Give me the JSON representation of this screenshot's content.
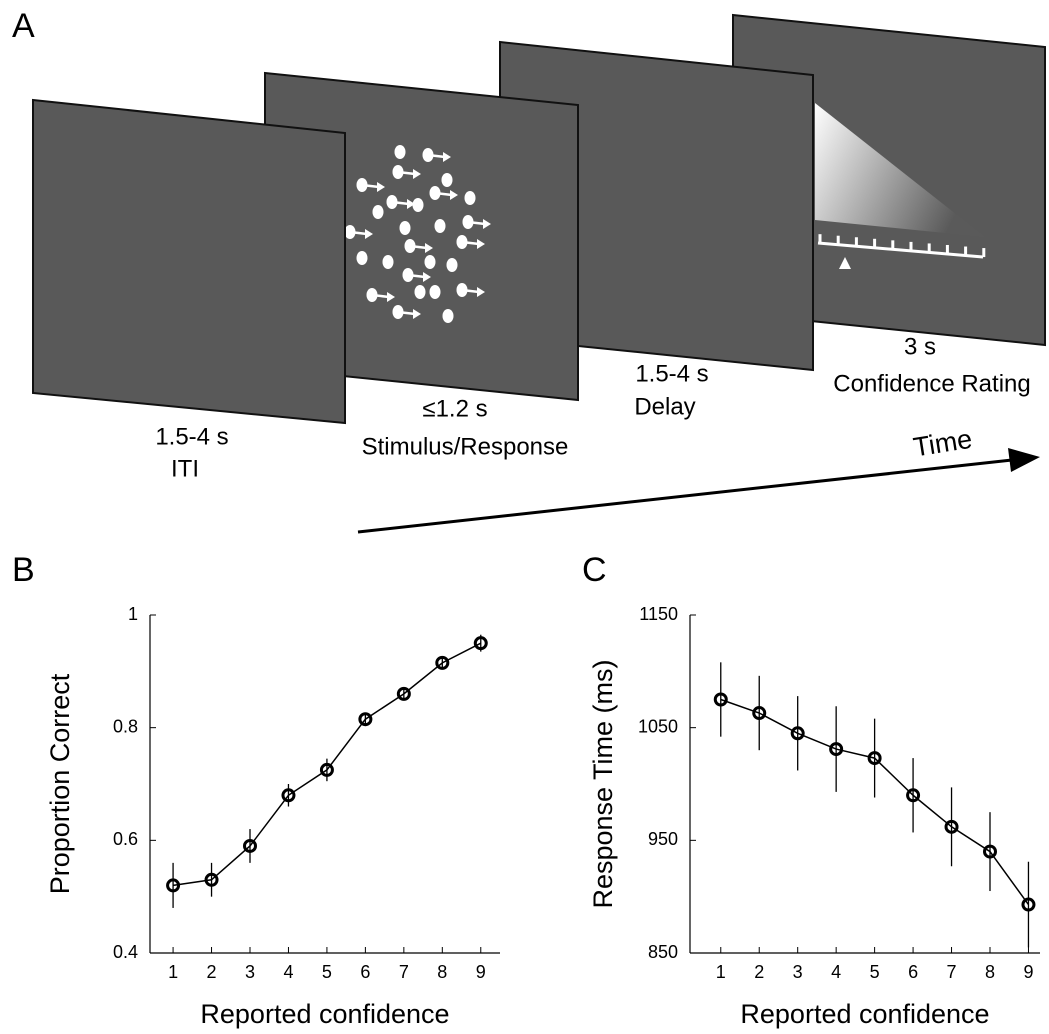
{
  "panel_labels": [
    "A",
    "B",
    "C"
  ],
  "diagram": {
    "screens": [
      {
        "duration": "1.5-4 s",
        "label": "ITI"
      },
      {
        "duration": "≤1.2 s",
        "label": "Stimulus/Response"
      },
      {
        "duration": "1.5-4 s",
        "label": "Delay"
      },
      {
        "duration": "3 s",
        "label": "Confidence Rating"
      }
    ],
    "time_label": "Time"
  },
  "chart_data": [
    {
      "type": "line",
      "color": "#000000",
      "x": [
        1,
        2,
        3,
        4,
        5,
        6,
        7,
        8,
        9
      ],
      "values": [
        0.52,
        0.53,
        0.59,
        0.68,
        0.725,
        0.815,
        0.86,
        0.915,
        0.95
      ],
      "errors": [
        0.04,
        0.03,
        0.03,
        0.02,
        0.02,
        0.01,
        0.01,
        0.01,
        0.015
      ],
      "xlim": [
        0.4,
        9.5
      ],
      "ylim": [
        0.4,
        1
      ],
      "xticks": [
        1,
        2,
        3,
        4,
        5,
        6,
        7,
        8,
        9
      ],
      "yticks": [
        0.4,
        0.6,
        0.8,
        1
      ],
      "xlabel": "Reported confidence",
      "ylabel": "Proportion Correct"
    },
    {
      "type": "line",
      "color": "#000000",
      "x": [
        1,
        2,
        3,
        4,
        5,
        6,
        7,
        8,
        9
      ],
      "values": [
        1075,
        1063,
        1045,
        1031,
        1023,
        990,
        962,
        940,
        893
      ],
      "errors": [
        33,
        33,
        33,
        38,
        35,
        33,
        35,
        35,
        38
      ],
      "xlim": [
        0.2,
        9.3
      ],
      "ylim": [
        850,
        1150
      ],
      "xticks": [
        1,
        2,
        3,
        4,
        5,
        6,
        7,
        8,
        9
      ],
      "yticks": [
        850,
        950,
        1050,
        1150
      ],
      "xlabel": "Reported confidence",
      "ylabel": "Response Time (ms)"
    }
  ]
}
